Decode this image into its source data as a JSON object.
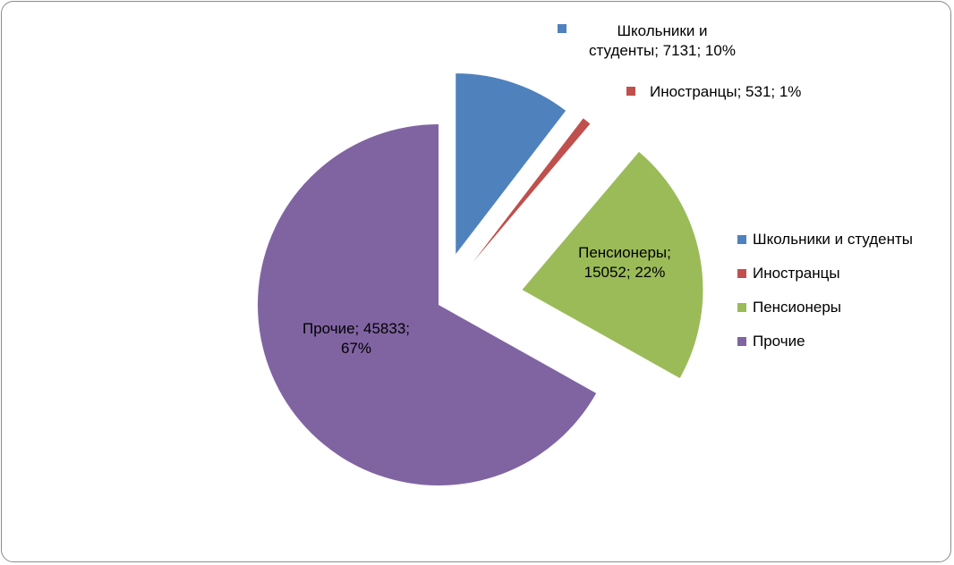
{
  "chart_data": {
    "type": "pie",
    "title": "",
    "categories": [
      "Школьники и студенты",
      "Иностранцы",
      "Пенсионеры",
      "Прочие"
    ],
    "values": [
      7131,
      531,
      15052,
      45833
    ],
    "percents": [
      "10%",
      "1%",
      "22%",
      "67%"
    ],
    "colors": [
      "#4f81bd",
      "#c0504d",
      "#9bbb59",
      "#8064a2"
    ],
    "exploded": true,
    "legend_position": "right",
    "data_labels": [
      {
        "lines": [
          "Школьники и",
          "студенты; 7131; 10%"
        ],
        "has_key": true
      },
      {
        "lines": [
          "Иностранцы; 531; 1%"
        ],
        "has_key": true
      },
      {
        "lines": [
          "Пенсионеры;",
          "15052; 22%"
        ],
        "has_key": false
      },
      {
        "lines": [
          "Прочие; 45833;",
          "67%"
        ],
        "has_key": false
      }
    ],
    "legend": [
      "Школьники и студенты",
      "Иностранцы",
      "Пенсионеры",
      "Прочие"
    ]
  }
}
